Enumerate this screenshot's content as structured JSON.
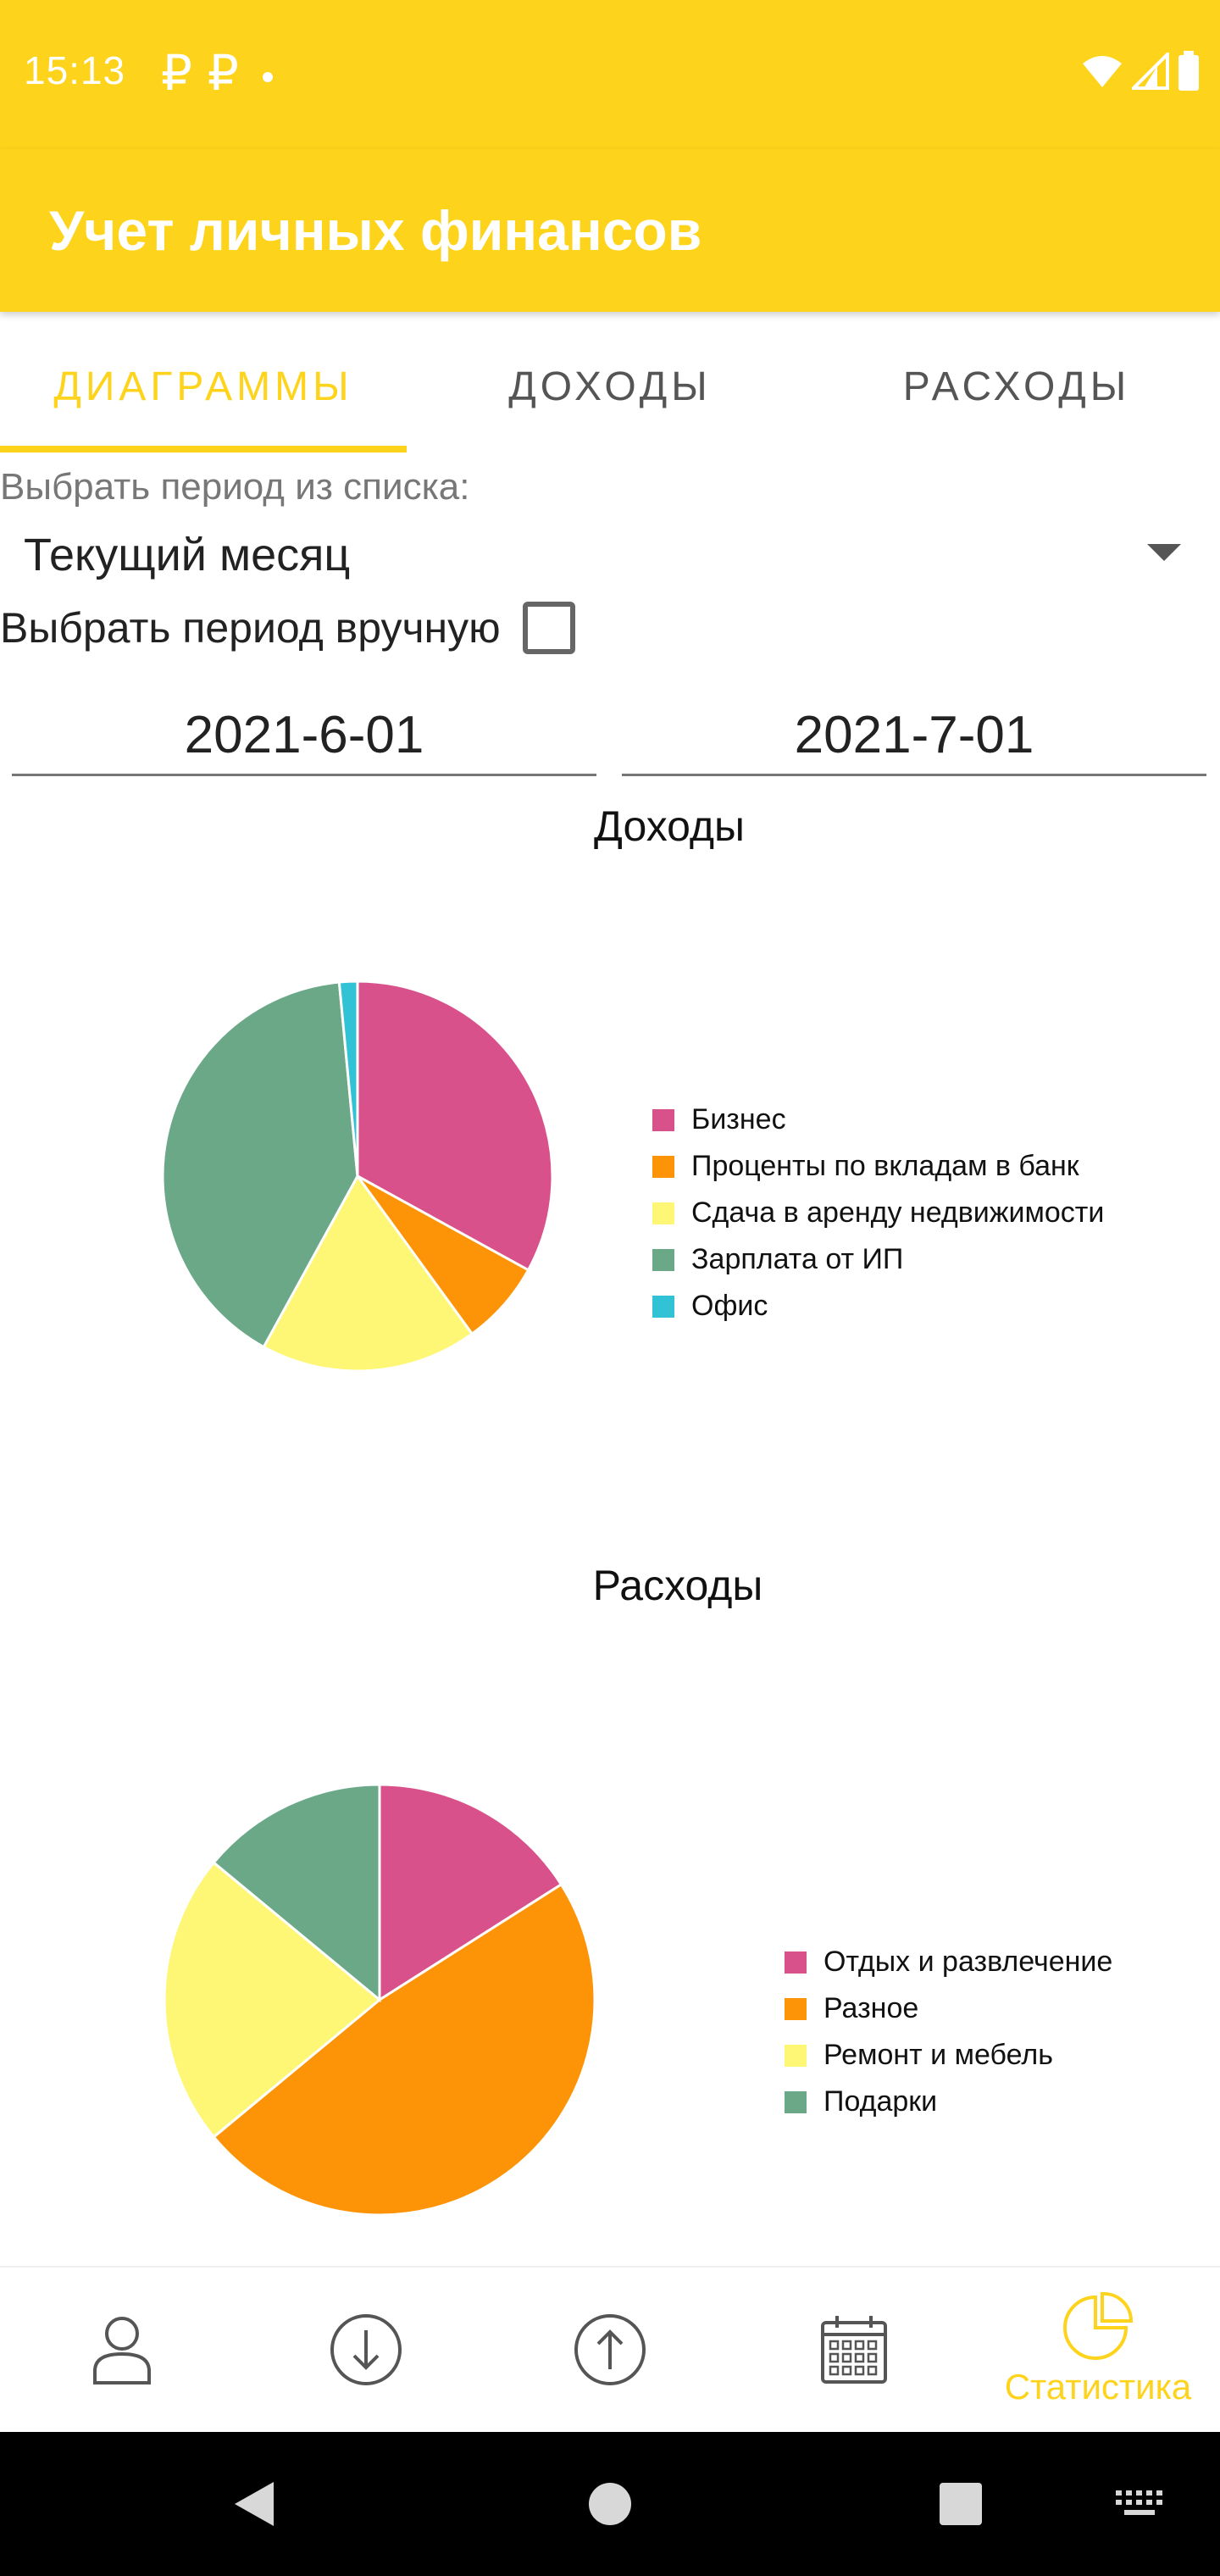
{
  "status_bar": {
    "time": "15:13",
    "notification_icons": [
      "₽",
      "₽"
    ],
    "icons": [
      "wifi-icon",
      "cell-signal-icon",
      "battery-icon"
    ]
  },
  "app_bar": {
    "title": "Учет личных финансов"
  },
  "tabs": [
    {
      "label": "ДИАГРАММЫ",
      "active": true
    },
    {
      "label": "ДОХОДЫ",
      "active": false
    },
    {
      "label": "РАСХОДЫ",
      "active": false
    }
  ],
  "period": {
    "label": "Выбрать период из списка:",
    "selected": "Текущий месяц",
    "manual_label": "Выбрать период вручную",
    "manual_checked": false,
    "date_from": "2021-6-01",
    "date_to": "2021-7-01"
  },
  "colors": {
    "accent": "#fdd31b",
    "pink": "#d9518a",
    "orange": "#fd9408",
    "yellow": "#fef776",
    "green": "#6aa888",
    "cyan": "#31c2d6"
  },
  "chart_data": [
    {
      "type": "pie",
      "title": "Доходы",
      "categories": [
        "Бизнес",
        "Проценты по вкладам в банк",
        "Сдача в аренду недвижимости",
        "Зарплата от ИП",
        "Офис"
      ],
      "values": [
        33,
        7,
        18,
        40.5,
        1.5
      ],
      "colors": [
        "#d9518a",
        "#fd9408",
        "#fef776",
        "#6aa888",
        "#31c2d6"
      ],
      "legend_position": "right"
    },
    {
      "type": "pie",
      "title": "Расходы",
      "categories": [
        "Отдых и развлечение",
        "Разное",
        "Ремонт и мебель",
        "Подарки"
      ],
      "values": [
        16,
        48,
        22,
        14
      ],
      "colors": [
        "#d9518a",
        "#fd9408",
        "#fef776",
        "#6aa888"
      ],
      "legend_position": "right"
    }
  ],
  "bottom_nav": {
    "items": [
      {
        "icon": "person-icon",
        "label": "",
        "active": false
      },
      {
        "icon": "arrow-down-circle-icon",
        "label": "",
        "active": false
      },
      {
        "icon": "arrow-up-circle-icon",
        "label": "",
        "active": false
      },
      {
        "icon": "calendar-icon",
        "label": "",
        "active": false
      },
      {
        "icon": "pie-chart-icon",
        "label": "Статистика",
        "active": true
      }
    ]
  },
  "system_nav": {
    "icons": [
      "back-icon",
      "home-icon",
      "recents-icon",
      "keyboard-icon"
    ]
  }
}
